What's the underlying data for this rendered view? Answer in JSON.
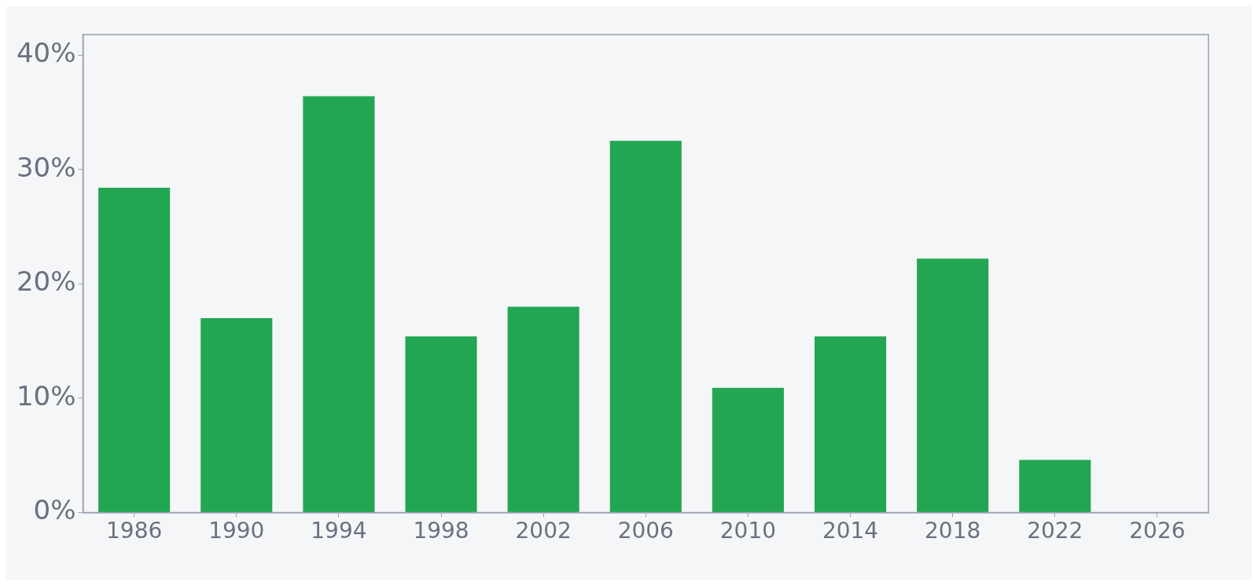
{
  "chart_data": {
    "type": "bar",
    "categories": [
      "1986",
      "1990",
      "1994",
      "1998",
      "2002",
      "2006",
      "2010",
      "2014",
      "2018",
      "2022",
      "2026"
    ],
    "values": [
      28.4,
      17.0,
      36.4,
      15.4,
      18.0,
      32.5,
      10.9,
      15.4,
      22.2,
      4.6,
      null
    ],
    "color": "#22a652",
    "ylim": [
      0,
      41.8
    ],
    "yticks": [
      {
        "value": 0,
        "label": "0%"
      },
      {
        "value": 10,
        "label": "10%"
      },
      {
        "value": 20,
        "label": "20%"
      },
      {
        "value": 30,
        "label": "30%"
      },
      {
        "value": 40,
        "label": "40%"
      }
    ],
    "grid": false,
    "legend": false
  }
}
